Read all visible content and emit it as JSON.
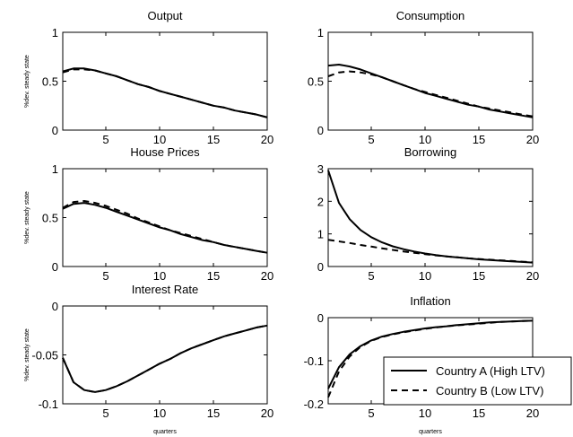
{
  "chart_data": [
    {
      "type": "line",
      "title": "Output",
      "ylabel": "%dev. steady state",
      "xlabel": "",
      "xlim": [
        1,
        20
      ],
      "ylim": [
        0,
        1
      ],
      "xticks": [
        "5",
        "10",
        "15",
        "20"
      ],
      "yticks": [
        "0",
        "0.5",
        "1"
      ],
      "x": [
        1,
        2,
        3,
        4,
        5,
        6,
        7,
        8,
        9,
        10,
        11,
        12,
        13,
        14,
        15,
        16,
        17,
        18,
        19,
        20
      ],
      "series": [
        {
          "values": [
            0.6,
            0.63,
            0.63,
            0.61,
            0.58,
            0.55,
            0.51,
            0.47,
            0.44,
            0.4,
            0.37,
            0.34,
            0.31,
            0.28,
            0.25,
            0.23,
            0.2,
            0.18,
            0.16,
            0.13
          ]
        },
        {
          "values": [
            0.59,
            0.62,
            0.62,
            0.61,
            0.58,
            0.55,
            0.51,
            0.47,
            0.44,
            0.4,
            0.37,
            0.34,
            0.31,
            0.28,
            0.25,
            0.23,
            0.2,
            0.18,
            0.16,
            0.13
          ]
        }
      ]
    },
    {
      "type": "line",
      "title": "Consumption",
      "ylabel": "",
      "xlabel": "",
      "xlim": [
        1,
        20
      ],
      "ylim": [
        0,
        1
      ],
      "xticks": [
        "5",
        "10",
        "15",
        "20"
      ],
      "yticks": [
        "0",
        "0.5",
        "1"
      ],
      "x": [
        1,
        2,
        3,
        4,
        5,
        6,
        7,
        8,
        9,
        10,
        11,
        12,
        13,
        14,
        15,
        16,
        17,
        18,
        19,
        20
      ],
      "series": [
        {
          "values": [
            0.66,
            0.67,
            0.65,
            0.62,
            0.58,
            0.54,
            0.5,
            0.46,
            0.42,
            0.38,
            0.35,
            0.32,
            0.29,
            0.26,
            0.24,
            0.21,
            0.19,
            0.17,
            0.15,
            0.13
          ]
        },
        {
          "values": [
            0.55,
            0.59,
            0.6,
            0.59,
            0.57,
            0.54,
            0.5,
            0.46,
            0.42,
            0.39,
            0.36,
            0.33,
            0.3,
            0.27,
            0.24,
            0.22,
            0.2,
            0.18,
            0.16,
            0.14
          ]
        }
      ]
    },
    {
      "type": "line",
      "title": "House Prices",
      "ylabel": "%dev. steady state",
      "xlabel": "",
      "xlim": [
        1,
        20
      ],
      "ylim": [
        0,
        1
      ],
      "xticks": [
        "5",
        "10",
        "15",
        "20"
      ],
      "yticks": [
        "0",
        "0.5",
        "1"
      ],
      "x": [
        1,
        2,
        3,
        4,
        5,
        6,
        7,
        8,
        9,
        10,
        11,
        12,
        13,
        14,
        15,
        16,
        17,
        18,
        19,
        20
      ],
      "series": [
        {
          "values": [
            0.59,
            0.64,
            0.65,
            0.63,
            0.6,
            0.56,
            0.52,
            0.48,
            0.44,
            0.4,
            0.37,
            0.33,
            0.3,
            0.27,
            0.25,
            0.22,
            0.2,
            0.18,
            0.16,
            0.14
          ]
        },
        {
          "values": [
            0.6,
            0.66,
            0.67,
            0.65,
            0.62,
            0.58,
            0.54,
            0.49,
            0.45,
            0.41,
            0.37,
            0.34,
            0.31,
            0.28,
            0.25,
            0.22,
            0.2,
            0.18,
            0.16,
            0.14
          ]
        }
      ]
    },
    {
      "type": "line",
      "title": "Borrowing",
      "ylabel": "",
      "xlabel": "",
      "xlim": [
        1,
        20
      ],
      "ylim": [
        0,
        3
      ],
      "xticks": [
        "5",
        "10",
        "15",
        "20"
      ],
      "yticks": [
        "0",
        "1",
        "2",
        "3"
      ],
      "x": [
        1,
        2,
        3,
        4,
        5,
        6,
        7,
        8,
        9,
        10,
        11,
        12,
        13,
        14,
        15,
        16,
        17,
        18,
        19,
        20
      ],
      "series": [
        {
          "values": [
            2.95,
            1.95,
            1.45,
            1.12,
            0.9,
            0.74,
            0.62,
            0.53,
            0.46,
            0.4,
            0.35,
            0.31,
            0.28,
            0.25,
            0.22,
            0.2,
            0.18,
            0.16,
            0.14,
            0.12
          ]
        },
        {
          "values": [
            0.82,
            0.77,
            0.72,
            0.66,
            0.61,
            0.56,
            0.51,
            0.46,
            0.42,
            0.38,
            0.34,
            0.31,
            0.28,
            0.25,
            0.23,
            0.21,
            0.19,
            0.17,
            0.15,
            0.13
          ]
        }
      ]
    },
    {
      "type": "line",
      "title": "Interest Rate",
      "ylabel": "%dev. steady state",
      "xlabel": "quarters",
      "xlim": [
        1,
        20
      ],
      "ylim": [
        -0.1,
        0
      ],
      "xticks": [
        "5",
        "10",
        "15",
        "20"
      ],
      "yticks": [
        "-0.1",
        "-0.05",
        "0"
      ],
      "x": [
        1,
        2,
        3,
        4,
        5,
        6,
        7,
        8,
        9,
        10,
        11,
        12,
        13,
        14,
        15,
        16,
        17,
        18,
        19,
        20
      ],
      "series": [
        {
          "values": [
            -0.053,
            -0.078,
            -0.086,
            -0.088,
            -0.086,
            -0.082,
            -0.077,
            -0.071,
            -0.065,
            -0.059,
            -0.054,
            -0.048,
            -0.043,
            -0.039,
            -0.035,
            -0.031,
            -0.028,
            -0.025,
            -0.022,
            -0.02
          ]
        },
        {
          "values": [
            -0.053,
            -0.078,
            -0.086,
            -0.088,
            -0.086,
            -0.082,
            -0.077,
            -0.071,
            -0.065,
            -0.059,
            -0.054,
            -0.048,
            -0.043,
            -0.039,
            -0.035,
            -0.031,
            -0.028,
            -0.025,
            -0.022,
            -0.02
          ]
        }
      ]
    },
    {
      "type": "line",
      "title": "Inflation",
      "ylabel": "",
      "xlabel": "quarters",
      "xlim": [
        1,
        20
      ],
      "ylim": [
        -0.2,
        0
      ],
      "xticks": [
        "5",
        "10",
        "15",
        "20"
      ],
      "yticks": [
        "-0.2",
        "-0.1",
        "0"
      ],
      "x": [
        1,
        2,
        3,
        4,
        5,
        6,
        7,
        8,
        9,
        10,
        11,
        12,
        13,
        14,
        15,
        16,
        17,
        18,
        19,
        20
      ],
      "series": [
        {
          "name": "Country A (High LTV)",
          "values": [
            -0.165,
            -0.115,
            -0.085,
            -0.066,
            -0.053,
            -0.044,
            -0.038,
            -0.033,
            -0.029,
            -0.025,
            -0.022,
            -0.02,
            -0.017,
            -0.015,
            -0.013,
            -0.011,
            -0.01,
            -0.009,
            -0.008,
            -0.007
          ]
        },
        {
          "name": "Country B (Low LTV)",
          "values": [
            -0.185,
            -0.125,
            -0.09,
            -0.068,
            -0.054,
            -0.045,
            -0.039,
            -0.034,
            -0.03,
            -0.026,
            -0.023,
            -0.02,
            -0.018,
            -0.016,
            -0.014,
            -0.012,
            -0.01,
            -0.009,
            -0.008,
            -0.007
          ]
        }
      ],
      "legend": "lower-right"
    }
  ]
}
